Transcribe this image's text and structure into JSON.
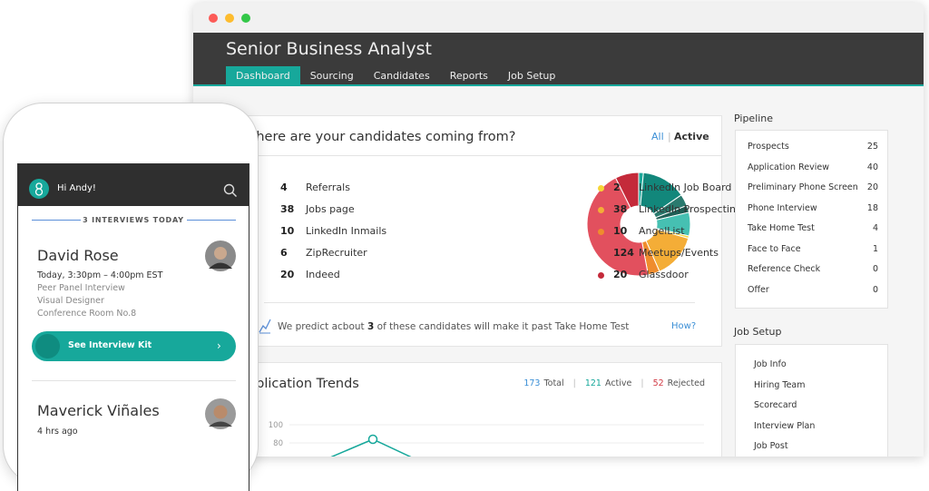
{
  "window": {
    "title": "Senior Business Analyst",
    "tabs": [
      "Dashboard",
      "Sourcing",
      "Candidates",
      "Reports",
      "Job Setup"
    ]
  },
  "sources": {
    "title": "Where are your candidates coming from?",
    "filters": [
      "All",
      "Active"
    ],
    "items": [
      {
        "count": 4,
        "name": "Referrals",
        "color": "#1aa99b"
      },
      {
        "count": 38,
        "name": "Jobs page",
        "color": "#12877b"
      },
      {
        "count": 10,
        "name": "LinkedIn Inmails",
        "color": "#2a7a6e"
      },
      {
        "count": 6,
        "name": "ZipRecruiter",
        "color": "#1f5e55"
      },
      {
        "count": 20,
        "name": "Indeed",
        "color": "#46c0b2"
      },
      {
        "count": 2,
        "name": "LinkedIn Job Board",
        "color": "#f6d536"
      },
      {
        "count": 38,
        "name": "LinkedIn Prospecting",
        "color": "#f4ad37"
      },
      {
        "count": 10,
        "name": "AngelList",
        "color": "#ef8c2d"
      },
      {
        "count": 124,
        "name": "Meetups/Events",
        "color": "#e2505e"
      },
      {
        "count": 20,
        "name": "Glassdoor",
        "color": "#c42a3a"
      }
    ],
    "prediction": {
      "before": "We predict acbout",
      "count": 3,
      "after": "of these candidates will make it past Take Home Test",
      "link": "How?"
    }
  },
  "trends": {
    "title": "Application Trends",
    "stats": [
      {
        "count": 173,
        "label": "Total",
        "color": "#3b8fd6"
      },
      {
        "count": 121,
        "label": "Active",
        "color": "#17a89b"
      },
      {
        "count": 52,
        "label": "Rejected",
        "color": "#d23a45"
      }
    ],
    "yticks": [
      100,
      80
    ]
  },
  "pipeline": {
    "title": "Pipeline",
    "stages": [
      {
        "name": "Prospects",
        "count": 25
      },
      {
        "name": "Application Review",
        "count": 40
      },
      {
        "name": "Preliminary Phone Screen",
        "count": 20
      },
      {
        "name": "Phone Interview",
        "count": 18
      },
      {
        "name": "Take Home Test",
        "count": 4
      },
      {
        "name": "Face to Face",
        "count": 1
      },
      {
        "name": "Reference Check",
        "count": 0
      },
      {
        "name": "Offer",
        "count": 0
      }
    ]
  },
  "job_setup": {
    "title": "Job Setup",
    "items": [
      "Job Info",
      "Hiring Team",
      "Scorecard",
      "Interview Plan",
      "Job Post"
    ]
  },
  "phone": {
    "greeting": "Hi Andy!",
    "section": "3 INTERVIEWS TODAY",
    "interviews": [
      {
        "name": "David Rose",
        "time": "Today, 3:30pm – 4:00pm EST",
        "details": [
          "Peer Panel Interview",
          "Visual Designer",
          "Conference Room No.8"
        ],
        "action": "See Interview Kit"
      },
      {
        "name": "Maverick Viñales",
        "time": "4 hrs ago"
      }
    ]
  }
}
